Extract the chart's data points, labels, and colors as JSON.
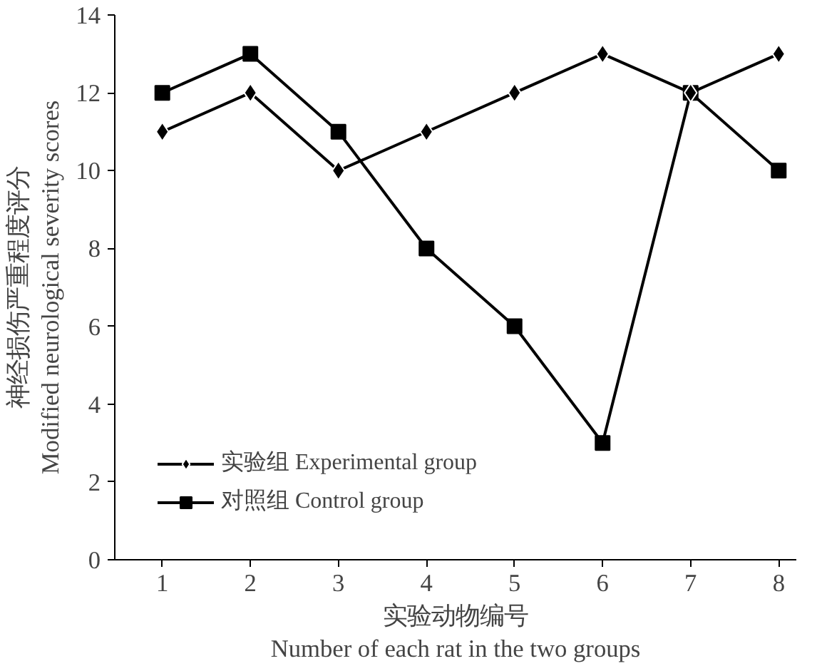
{
  "chart_data": {
    "type": "line",
    "xlabel": "实验动物编号\nNumber of each rat in the two groups",
    "ylabel": "神经损伤严重程度评分\nModified neurological severity scores",
    "x": [
      1,
      2,
      3,
      4,
      5,
      6,
      7,
      8
    ],
    "series": [
      {
        "name": "实验组 Experimental group",
        "color": "#000000",
        "marker": "diamond",
        "values": [
          11,
          12,
          10,
          11,
          12,
          13,
          12,
          13
        ]
      },
      {
        "name": "对照组 Control group",
        "color": "#000000",
        "marker": "square",
        "values": [
          12,
          13,
          11,
          8,
          6,
          3,
          12,
          10
        ]
      }
    ],
    "xlim": [
      0.46,
      8.2
    ],
    "xticks": [
      1,
      2,
      3,
      4,
      5,
      6,
      7,
      8
    ],
    "ylim": [
      0,
      14
    ],
    "yticks": [
      0,
      2,
      4,
      6,
      8,
      10,
      12,
      14
    ],
    "grid": false,
    "legend": "bottom left",
    "line_style": "solid"
  }
}
